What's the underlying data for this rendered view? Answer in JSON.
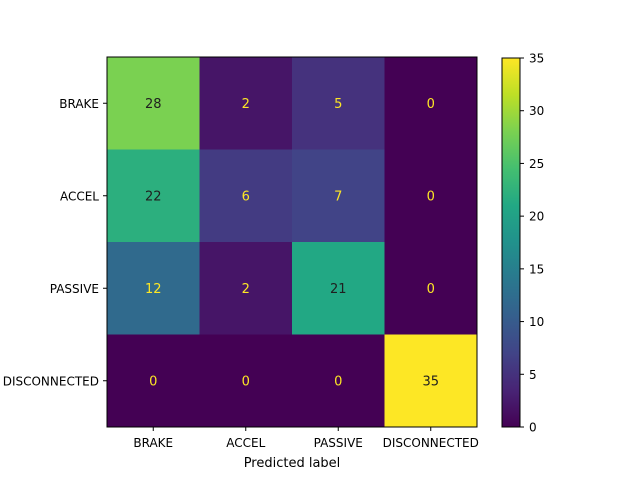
{
  "chart_data": {
    "type": "heatmap",
    "title": "",
    "xlabel": "Predicted label",
    "ylabel": "",
    "x_categories": [
      "BRAKE",
      "ACCEL",
      "PASSIVE",
      "DISCONNECTED"
    ],
    "y_categories": [
      "BRAKE",
      "ACCEL",
      "PASSIVE",
      "DISCONNECTED"
    ],
    "values": [
      [
        28,
        2,
        5,
        0
      ],
      [
        22,
        6,
        7,
        0
      ],
      [
        12,
        2,
        21,
        0
      ],
      [
        0,
        0,
        0,
        35
      ]
    ],
    "colorscale": "viridis",
    "vmin": 0,
    "vmax": 35,
    "colorbar_ticks": [
      0,
      5,
      10,
      15,
      20,
      25,
      30,
      35
    ],
    "dark_text_color": "#1f1f1f",
    "light_text_color": "#fde725"
  }
}
